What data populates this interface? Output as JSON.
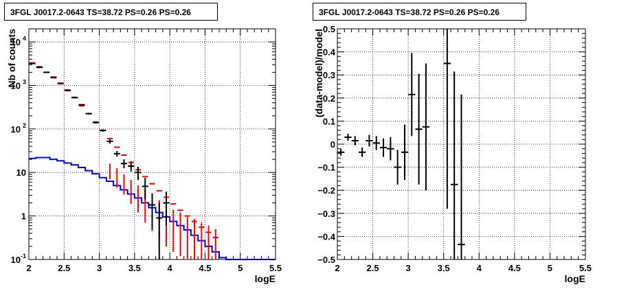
{
  "chart_data": [
    {
      "type": "scatter",
      "title": "3FGL J0017.2-0643 TS=38.72 PS=0.26 PS=0.26",
      "xlabel": "logE",
      "ylabel": "Nb of counts",
      "xlim": [
        2,
        5.5
      ],
      "ylim": [
        0.1,
        20000
      ],
      "yscale": "log",
      "grid": true,
      "xticks": [
        "2",
        "2.5",
        "3",
        "3.5",
        "4",
        "4.5",
        "5",
        "5.5"
      ],
      "yticks": [
        {
          "value": 0.1,
          "label": "10",
          "exp": "-1"
        },
        {
          "value": 1,
          "label": "1",
          "exp": ""
        },
        {
          "value": 10,
          "label": "10",
          "exp": ""
        },
        {
          "value": 100,
          "label": "10",
          "exp": "2"
        },
        {
          "value": 1000,
          "label": "10",
          "exp": "3"
        },
        {
          "value": 10000,
          "label": "10",
          "exp": "4"
        }
      ],
      "series": [
        {
          "kind": "histogram",
          "color": "#0000ff",
          "bin_width": 0.1,
          "x_start": 2.0,
          "values": [
            21,
            22,
            22,
            20,
            18.5,
            16.5,
            15,
            13,
            11,
            9.3,
            7.6,
            6.3,
            5.0,
            4.0,
            3.2,
            2.6,
            2.0,
            1.55,
            1.2,
            0.95,
            0.75,
            0.6,
            0.48,
            0.36,
            0.27,
            0.2,
            0.15,
            0.11,
            0.1,
            0.1,
            0.1,
            0.1,
            0.1,
            0.1,
            0.1
          ]
        },
        {
          "kind": "model-points",
          "color": "#ff0000",
          "x_start": 2.05,
          "bin_width": 0.1,
          "values": [
            3300,
            2700,
            2000,
            1500,
            1100,
            760,
            520,
            340,
            225,
            145,
            93,
            60,
            38,
            25,
            17,
            11.5,
            8,
            5.5,
            3.8,
            2.7,
            1.9,
            1.35,
            1.0,
            0.75,
            0.55,
            0.42,
            0.32
          ],
          "err_from": 11,
          "err_low": [
            7,
            4.5,
            3.1,
            1.9,
            1.2,
            0.7,
            0.45,
            0.3,
            0.2,
            0.15,
            0.12,
            0.1,
            0.1,
            0.1,
            0.1,
            0.1
          ],
          "err_high": [
            16,
            12.5,
            9,
            6.7,
            5,
            3.8,
            2.9,
            2.3,
            1.7,
            1.4,
            1.2,
            0.95,
            0.85,
            0.7,
            0.6,
            0.5
          ]
        },
        {
          "kind": "data-points",
          "color": "#000000",
          "x": [
            2.05,
            2.15,
            2.25,
            2.35,
            2.45,
            2.55,
            2.65,
            2.75,
            2.85,
            2.95,
            3.05,
            3.15,
            3.25,
            3.35,
            3.45,
            3.55,
            3.65,
            3.75,
            3.85,
            3.95
          ],
          "y": [
            3200,
            2600,
            2000,
            1550,
            1120,
            780,
            530,
            360,
            225,
            140,
            92,
            52,
            27,
            16,
            14,
            10,
            4.8,
            1.8,
            0.9,
            2.0
          ],
          "y_low": [
            3100,
            2500,
            1950,
            1500,
            1080,
            750,
            505,
            345,
            215,
            132,
            86,
            46,
            23,
            12.5,
            10.5,
            6.7,
            2.4,
            0.5,
            0.1,
            0.6
          ],
          "y_high": [
            3300,
            2700,
            2050,
            1600,
            1160,
            810,
            555,
            375,
            235,
            148,
            98,
            58,
            31,
            20,
            18,
            13.5,
            7.5,
            3.3,
            2.0,
            3.6
          ]
        }
      ]
    },
    {
      "type": "scatter",
      "title": "3FGL J0017.2-0643 TS=38.72 PS=0.26 PS=0.26",
      "xlabel": "logE",
      "ylabel": "(data-model)/model",
      "xlim": [
        2,
        5.5
      ],
      "ylim": [
        -0.5,
        0.5
      ],
      "grid": true,
      "xticks": [
        "2",
        "2.5",
        "3",
        "3.5",
        "4",
        "4.5",
        "5",
        "5.5"
      ],
      "yticks": [
        "−0.5",
        "−0.4",
        "−0.3",
        "−0.2",
        "−0.1",
        "0",
        "0.1",
        "0.2",
        "0.3",
        "0.4",
        "0.5"
      ],
      "series": [
        {
          "kind": "residuals",
          "color": "#000000",
          "x": [
            2.05,
            2.15,
            2.25,
            2.35,
            2.45,
            2.55,
            2.65,
            2.75,
            2.85,
            2.95,
            3.05,
            3.15,
            3.25,
            3.55,
            3.65,
            3.75
          ],
          "y": [
            -0.035,
            0.03,
            0.015,
            -0.035,
            0.015,
            0.005,
            -0.015,
            -0.02,
            -0.1,
            -0.035,
            0.215,
            0.065,
            0.075,
            0.35,
            -0.175,
            -0.435
          ],
          "err": [
            0.015,
            0.015,
            0.02,
            0.02,
            0.025,
            0.03,
            0.04,
            0.05,
            0.075,
            0.12,
            0.18,
            0.24,
            0.275,
            0.63,
            0.49,
            0.65
          ]
        }
      ]
    }
  ]
}
